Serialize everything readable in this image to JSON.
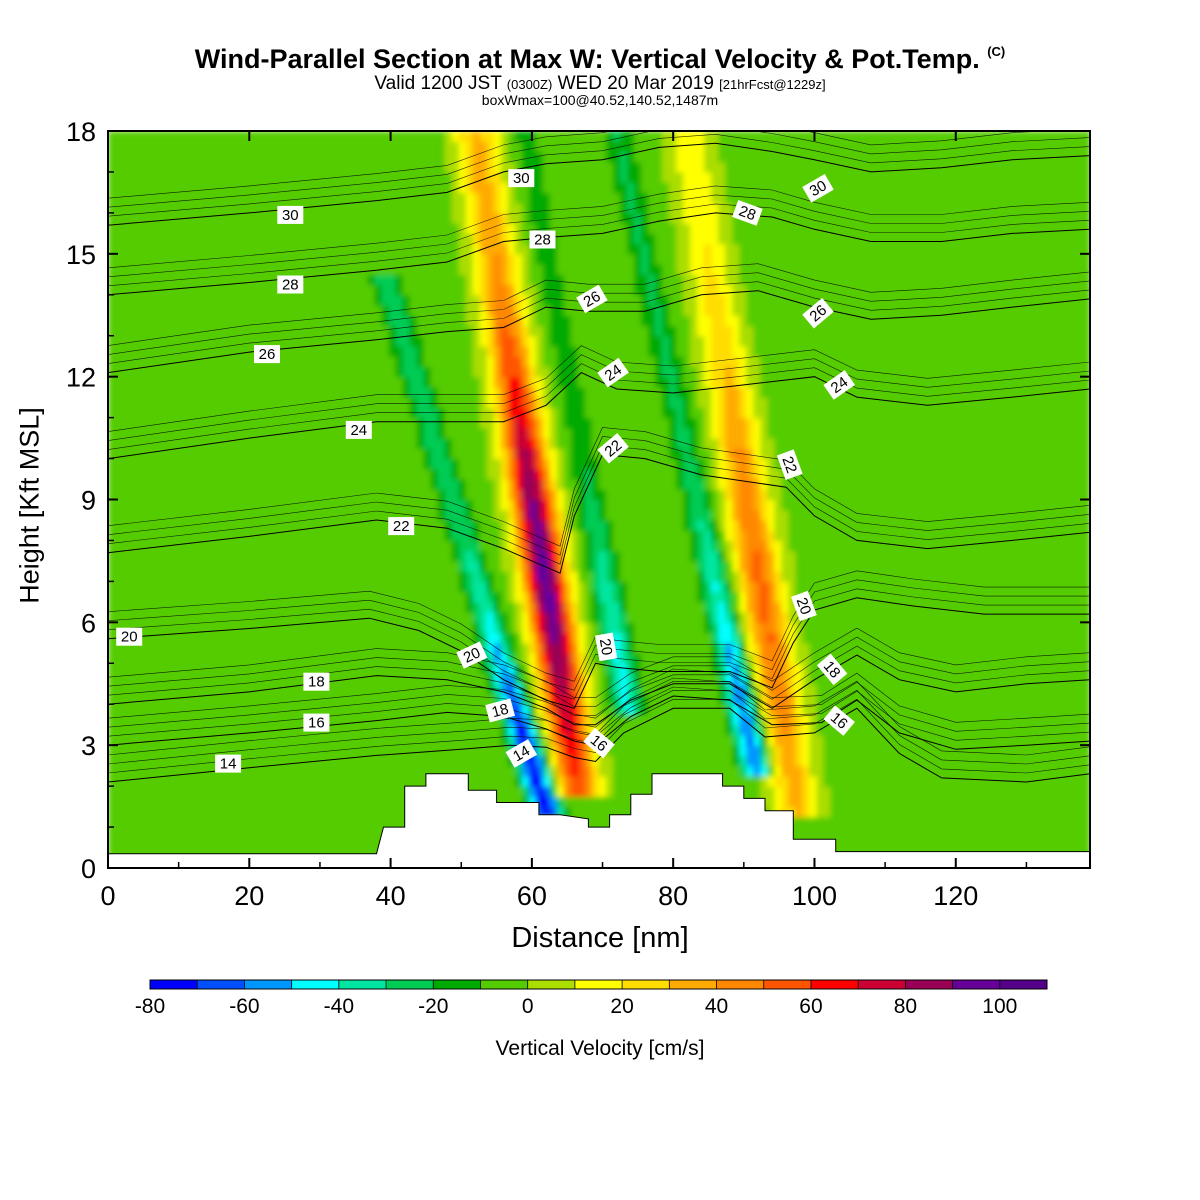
{
  "header": {
    "title": "Wind-Parallel Section at Max W: Vertical Velocity & Pot.Temp.",
    "copyright": "(C)",
    "valid_main": "Valid 1200 JST",
    "valid_utc": "(0300Z)",
    "valid_date": "WED 20 Mar 2019",
    "forecast": "[21hrFcst@1229z]",
    "box_info": "boxWmax=100@40.52,140.52,1487m"
  },
  "chart_data": {
    "type": "heatmap",
    "xlabel": "Distance [nm]",
    "ylabel": "Height [Kft MSL]",
    "xlim": [
      0,
      139
    ],
    "ylim": [
      0,
      18
    ],
    "x_ticks": [
      0,
      20,
      40,
      60,
      80,
      100,
      120
    ],
    "y_ticks": [
      0,
      3,
      6,
      9,
      12,
      15,
      18
    ],
    "colorbar": {
      "title": "Vertical Velocity [cm/s]",
      "range": [
        -80,
        110
      ],
      "step": 10,
      "tick_labels": [
        "-80",
        "-60",
        "-40",
        "-20",
        "0",
        "20",
        "40",
        "60",
        "80",
        "100"
      ],
      "colors": [
        "#0000ff",
        "#0050ff",
        "#0096ff",
        "#00ffff",
        "#00e6a0",
        "#00cc55",
        "#00aa00",
        "#55cc00",
        "#aadd00",
        "#ffff00",
        "#ffdd00",
        "#ffaa00",
        "#ff8800",
        "#ff5500",
        "#ff0000",
        "#cc0033",
        "#990055",
        "#660099",
        "#550088"
      ]
    },
    "updraft_axes": [
      {
        "base_x": 66,
        "base_z": 2.5,
        "top_x": 52,
        "top_z": 18,
        "peak_cm_s": 100
      },
      {
        "base_x": 97,
        "base_z": 2.0,
        "top_x": 82,
        "top_z": 18,
        "peak_cm_s": 55
      }
    ],
    "downdraft_axes": [
      {
        "base_x": 61,
        "base_z": 2.0,
        "top_x": 40,
        "top_z": 14,
        "min_cm_s": -80
      },
      {
        "base_x": 73,
        "base_z": 4.5,
        "top_x": 59,
        "top_z": 18,
        "min_cm_s": -40
      },
      {
        "base_x": 91,
        "base_z": 3.0,
        "top_x": 72,
        "top_z": 18,
        "min_cm_s": -60
      }
    ],
    "terrain_kft": [
      [
        0,
        0.35
      ],
      [
        38,
        0.35
      ],
      [
        39,
        1.0
      ],
      [
        42,
        1.0
      ],
      [
        42,
        2.0
      ],
      [
        45,
        2.0
      ],
      [
        45,
        2.3
      ],
      [
        51,
        2.3
      ],
      [
        51,
        1.9
      ],
      [
        55,
        1.9
      ],
      [
        55,
        1.6
      ],
      [
        61,
        1.6
      ],
      [
        61,
        1.3
      ],
      [
        64,
        1.3
      ],
      [
        68,
        1.2
      ],
      [
        68,
        1.0
      ],
      [
        71,
        1.0
      ],
      [
        71,
        1.3
      ],
      [
        74,
        1.3
      ],
      [
        74,
        1.8
      ],
      [
        77,
        1.8
      ],
      [
        77,
        2.3
      ],
      [
        87,
        2.3
      ],
      [
        87,
        2.0
      ],
      [
        90,
        2.0
      ],
      [
        90,
        1.7
      ],
      [
        93,
        1.7
      ],
      [
        93,
        1.4
      ],
      [
        97,
        1.4
      ],
      [
        97,
        0.7
      ],
      [
        103,
        0.7
      ],
      [
        103,
        0.4
      ],
      [
        139,
        0.4
      ]
    ],
    "theta_contours": [
      {
        "label": "14",
        "label_x": 17,
        "label_z": 2.55,
        "points": [
          [
            0,
            2.1
          ],
          [
            20,
            2.45
          ],
          [
            38,
            2.75
          ],
          [
            50,
            2.9
          ],
          [
            57,
            3.0
          ],
          [
            62,
            2.95
          ],
          [
            66,
            2.7
          ],
          [
            69,
            2.6
          ],
          [
            73,
            3.3
          ],
          [
            80,
            3.9
          ],
          [
            88,
            3.9
          ],
          [
            93,
            3.2
          ],
          [
            100,
            3.3
          ],
          [
            106,
            3.9
          ],
          [
            112,
            2.8
          ],
          [
            118,
            2.2
          ],
          [
            130,
            2.1
          ],
          [
            139,
            2.3
          ]
        ]
      },
      {
        "label": "16",
        "label_x": 29.5,
        "label_z": 3.55,
        "points": [
          [
            0,
            3.0
          ],
          [
            20,
            3.3
          ],
          [
            38,
            3.6
          ],
          [
            48,
            3.8
          ],
          [
            56,
            3.7
          ],
          [
            62,
            3.4
          ],
          [
            66,
            3.1
          ],
          [
            69,
            3.0
          ],
          [
            74,
            3.7
          ],
          [
            80,
            4.2
          ],
          [
            88,
            4.1
          ],
          [
            94,
            3.5
          ],
          [
            101,
            3.55
          ],
          [
            106,
            4.1
          ],
          [
            112,
            3.3
          ],
          [
            120,
            2.9
          ],
          [
            130,
            3.0
          ],
          [
            139,
            3.1
          ]
        ]
      },
      {
        "label": "18",
        "label_x": 29.5,
        "label_z": 4.55,
        "points": [
          [
            0,
            4.0
          ],
          [
            20,
            4.3
          ],
          [
            38,
            4.7
          ],
          [
            48,
            4.6
          ],
          [
            56,
            4.3
          ],
          [
            62,
            3.9
          ],
          [
            66,
            3.5
          ],
          [
            69,
            3.5
          ],
          [
            74,
            4.1
          ],
          [
            80,
            4.5
          ],
          [
            88,
            4.5
          ],
          [
            94,
            3.9
          ],
          [
            100,
            4.6
          ],
          [
            106,
            5.2
          ],
          [
            112,
            4.6
          ],
          [
            120,
            4.3
          ],
          [
            130,
            4.5
          ],
          [
            139,
            4.6
          ]
        ]
      },
      {
        "label": "20",
        "label_x": 3,
        "label_z": 5.65,
        "points": [
          [
            0,
            5.6
          ],
          [
            20,
            5.85
          ],
          [
            37,
            6.1
          ],
          [
            44,
            5.8
          ],
          [
            50,
            5.3
          ],
          [
            56,
            4.6
          ],
          [
            62,
            4.1
          ],
          [
            66,
            3.9
          ],
          [
            69,
            5.0
          ],
          [
            72,
            4.9
          ],
          [
            78,
            4.8
          ],
          [
            88,
            4.8
          ],
          [
            94,
            4.4
          ],
          [
            97,
            5.5
          ],
          [
            100,
            6.3
          ],
          [
            106,
            6.6
          ],
          [
            114,
            6.4
          ],
          [
            124,
            6.2
          ],
          [
            139,
            6.2
          ]
        ]
      },
      {
        "label": "22",
        "label_x": 41.5,
        "label_z": 8.35,
        "points": [
          [
            0,
            7.7
          ],
          [
            20,
            8.1
          ],
          [
            38,
            8.5
          ],
          [
            48,
            8.3
          ],
          [
            56,
            7.8
          ],
          [
            64,
            7.2
          ],
          [
            66,
            8.6
          ],
          [
            70,
            10.1
          ],
          [
            76,
            10.0
          ],
          [
            84,
            9.6
          ],
          [
            96,
            9.3
          ],
          [
            100,
            8.6
          ],
          [
            106,
            8.0
          ],
          [
            116,
            7.8
          ],
          [
            128,
            8.0
          ],
          [
            139,
            8.2
          ]
        ]
      },
      {
        "label": "24",
        "label_x": 35.5,
        "label_z": 10.7,
        "points": [
          [
            0,
            10.0
          ],
          [
            20,
            10.5
          ],
          [
            38,
            10.9
          ],
          [
            48,
            10.9
          ],
          [
            56,
            10.9
          ],
          [
            62,
            11.3
          ],
          [
            67,
            12.1
          ],
          [
            72,
            11.7
          ],
          [
            80,
            11.6
          ],
          [
            90,
            11.8
          ],
          [
            100,
            12.0
          ],
          [
            106,
            11.5
          ],
          [
            116,
            11.3
          ],
          [
            128,
            11.5
          ],
          [
            139,
            11.7
          ]
        ]
      },
      {
        "label": "26",
        "label_x": 22.5,
        "label_z": 12.55,
        "points": [
          [
            0,
            12.1
          ],
          [
            20,
            12.6
          ],
          [
            38,
            12.9
          ],
          [
            48,
            13.1
          ],
          [
            56,
            13.2
          ],
          [
            62,
            13.7
          ],
          [
            68,
            13.6
          ],
          [
            76,
            13.6
          ],
          [
            84,
            14.0
          ],
          [
            92,
            14.1
          ],
          [
            100,
            13.7
          ],
          [
            108,
            13.4
          ],
          [
            118,
            13.5
          ],
          [
            128,
            13.7
          ],
          [
            139,
            13.9
          ]
        ]
      },
      {
        "label": "28",
        "label_x": 25.8,
        "label_z": 14.25,
        "points": [
          [
            0,
            14.0
          ],
          [
            20,
            14.3
          ],
          [
            38,
            14.6
          ],
          [
            48,
            14.8
          ],
          [
            56,
            15.3
          ],
          [
            62,
            15.4
          ],
          [
            70,
            15.5
          ],
          [
            78,
            15.8
          ],
          [
            86,
            16.0
          ],
          [
            94,
            15.9
          ],
          [
            100,
            15.6
          ],
          [
            108,
            15.3
          ],
          [
            118,
            15.3
          ],
          [
            128,
            15.5
          ],
          [
            139,
            15.6
          ]
        ]
      },
      {
        "label": "30",
        "label_x": 25.8,
        "label_z": 15.95,
        "points": [
          [
            0,
            15.7
          ],
          [
            20,
            16.0
          ],
          [
            38,
            16.3
          ],
          [
            48,
            16.5
          ],
          [
            56,
            17.0
          ],
          [
            62,
            17.2
          ],
          [
            70,
            17.3
          ],
          [
            78,
            17.6
          ],
          [
            86,
            17.7
          ],
          [
            94,
            17.5
          ],
          [
            100,
            17.3
          ],
          [
            108,
            17.0
          ],
          [
            118,
            17.1
          ],
          [
            128,
            17.3
          ],
          [
            139,
            17.4
          ]
        ]
      }
    ],
    "contour_labels": [
      {
        "text": "30",
        "x": 58.5,
        "z": 16.85,
        "angle": 0
      },
      {
        "text": "28",
        "x": 61.5,
        "z": 15.35,
        "angle": 0
      },
      {
        "text": "26",
        "x": 68.5,
        "z": 13.9,
        "angle": 30
      },
      {
        "text": "24",
        "x": 71.5,
        "z": 12.1,
        "angle": 35
      },
      {
        "text": "22",
        "x": 71.5,
        "z": 10.25,
        "angle": 40
      },
      {
        "text": "20",
        "x": 70.5,
        "z": 5.4,
        "angle": -80
      },
      {
        "text": "20",
        "x": 51.5,
        "z": 5.2,
        "angle": 25
      },
      {
        "text": "18",
        "x": 55.5,
        "z": 3.85,
        "angle": 15
      },
      {
        "text": "14",
        "x": 58.5,
        "z": 2.8,
        "angle": 30
      },
      {
        "text": "16",
        "x": 69.5,
        "z": 3.05,
        "angle": -40
      },
      {
        "text": "30",
        "x": 100.5,
        "z": 16.6,
        "angle": 30
      },
      {
        "text": "28",
        "x": 90.5,
        "z": 16.0,
        "angle": -20
      },
      {
        "text": "26",
        "x": 100.5,
        "z": 13.55,
        "angle": 40
      },
      {
        "text": "24",
        "x": 103.5,
        "z": 11.8,
        "angle": 35
      },
      {
        "text": "22",
        "x": 96.5,
        "z": 9.85,
        "angle": -70
      },
      {
        "text": "20",
        "x": 98.5,
        "z": 6.4,
        "angle": -70
      },
      {
        "text": "18",
        "x": 102.5,
        "z": 4.85,
        "angle": -50
      },
      {
        "text": "16",
        "x": 103.5,
        "z": 3.6,
        "angle": -40
      }
    ]
  }
}
